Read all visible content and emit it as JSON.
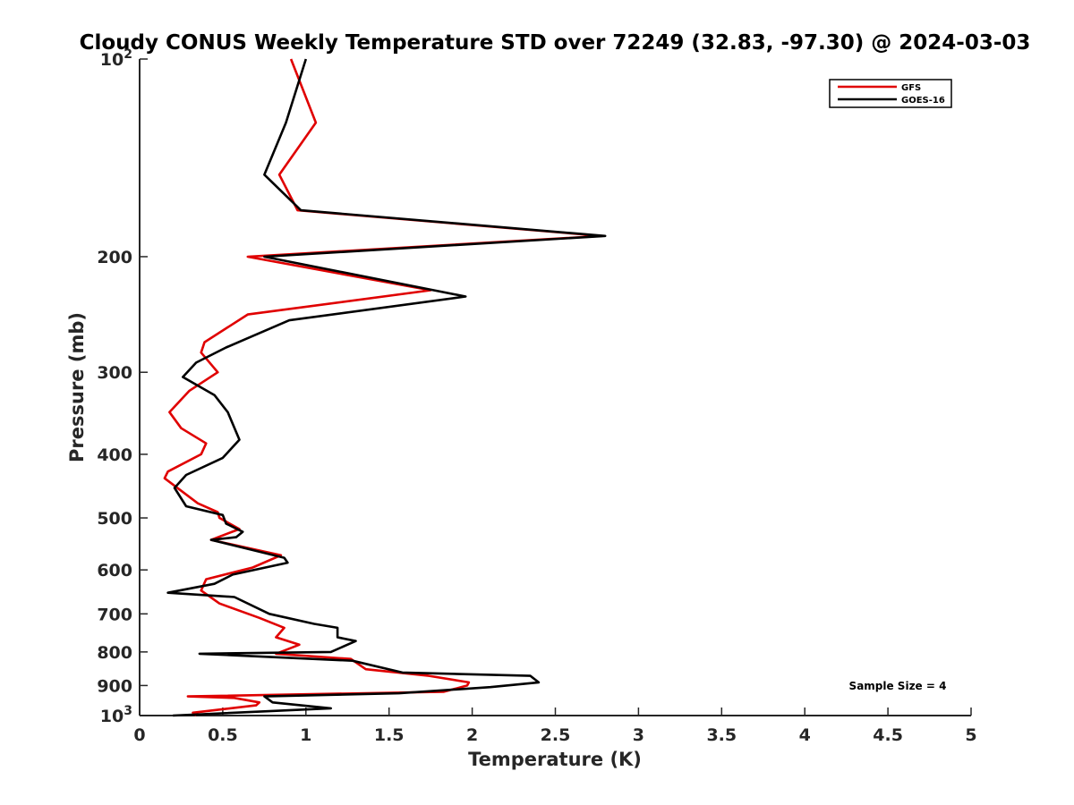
{
  "chart_data": {
    "type": "line",
    "title": "Cloudy CONUS Weekly Temperature STD over 72249 (32.83, -97.30) @ 2024-03-03",
    "xlabel": "Temperature (K)",
    "ylabel": "Pressure (mb)",
    "xlim": [
      0,
      5
    ],
    "ylim": [
      100,
      1000
    ],
    "yscale": "log",
    "y_reversed": true,
    "grid": false,
    "legend_location": "top-right",
    "x_ticks": [
      "0",
      "0.5",
      "1",
      "1.5",
      "2",
      "2.5",
      "3",
      "3.5",
      "4",
      "4.5",
      "5"
    ],
    "y_ticks": [
      {
        "value": 100,
        "base": "10",
        "exp": "2"
      },
      {
        "value": 200,
        "label": "200"
      },
      {
        "value": 300,
        "label": "300"
      },
      {
        "value": 400,
        "label": "400"
      },
      {
        "value": 500,
        "label": "500"
      },
      {
        "value": 600,
        "label": "600"
      },
      {
        "value": 700,
        "label": "700"
      },
      {
        "value": 800,
        "label": "800"
      },
      {
        "value": 900,
        "label": "900"
      },
      {
        "value": 1000,
        "base": "10",
        "exp": "3"
      }
    ],
    "annotation": "Sample Size = 4",
    "series": [
      {
        "name": "GFS",
        "color": "#e00000",
        "points": [
          [
            0.91,
            100
          ],
          [
            1.06,
            125
          ],
          [
            0.84,
            150
          ],
          [
            0.95,
            170
          ],
          [
            2.78,
            186
          ],
          [
            0.65,
            200
          ],
          [
            1.75,
            225
          ],
          [
            0.65,
            245
          ],
          [
            0.39,
            270
          ],
          [
            0.37,
            280
          ],
          [
            0.47,
            300
          ],
          [
            0.3,
            320
          ],
          [
            0.18,
            345
          ],
          [
            0.25,
            365
          ],
          [
            0.4,
            385
          ],
          [
            0.37,
            400
          ],
          [
            0.17,
            425
          ],
          [
            0.15,
            435
          ],
          [
            0.35,
            475
          ],
          [
            0.47,
            490
          ],
          [
            0.48,
            500
          ],
          [
            0.6,
            520
          ],
          [
            0.43,
            540
          ],
          [
            0.85,
            570
          ],
          [
            0.68,
            595
          ],
          [
            0.4,
            620
          ],
          [
            0.37,
            645
          ],
          [
            0.48,
            675
          ],
          [
            0.72,
            710
          ],
          [
            0.87,
            735
          ],
          [
            0.82,
            760
          ],
          [
            0.96,
            780
          ],
          [
            0.82,
            805
          ],
          [
            1.27,
            820
          ],
          [
            1.36,
            850
          ],
          [
            1.74,
            870
          ],
          [
            1.98,
            890
          ],
          [
            1.97,
            900
          ],
          [
            1.83,
            920
          ],
          [
            0.29,
            935
          ],
          [
            0.57,
            940
          ],
          [
            0.72,
            955
          ],
          [
            0.7,
            965
          ],
          [
            0.32,
            990
          ],
          [
            0.34,
            1000
          ]
        ]
      },
      {
        "name": "GOES-16",
        "color": "#000000",
        "points": [
          [
            1.0,
            100
          ],
          [
            0.88,
            125
          ],
          [
            0.75,
            150
          ],
          [
            0.97,
            170
          ],
          [
            2.8,
            186
          ],
          [
            0.75,
            200
          ],
          [
            1.96,
            230
          ],
          [
            0.9,
            250
          ],
          [
            0.52,
            275
          ],
          [
            0.34,
            290
          ],
          [
            0.26,
            305
          ],
          [
            0.45,
            325
          ],
          [
            0.53,
            345
          ],
          [
            0.6,
            380
          ],
          [
            0.5,
            405
          ],
          [
            0.28,
            430
          ],
          [
            0.21,
            450
          ],
          [
            0.28,
            480
          ],
          [
            0.5,
            495
          ],
          [
            0.52,
            510
          ],
          [
            0.62,
            525
          ],
          [
            0.58,
            535
          ],
          [
            0.43,
            540
          ],
          [
            0.87,
            575
          ],
          [
            0.89,
            585
          ],
          [
            0.56,
            610
          ],
          [
            0.45,
            630
          ],
          [
            0.17,
            650
          ],
          [
            0.57,
            660
          ],
          [
            0.78,
            700
          ],
          [
            1.05,
            725
          ],
          [
            1.19,
            735
          ],
          [
            1.19,
            760
          ],
          [
            1.3,
            770
          ],
          [
            1.15,
            800
          ],
          [
            0.36,
            805
          ],
          [
            1.28,
            825
          ],
          [
            1.58,
            860
          ],
          [
            2.35,
            870
          ],
          [
            2.4,
            890
          ],
          [
            2.11,
            905
          ],
          [
            1.56,
            925
          ],
          [
            0.75,
            935
          ],
          [
            0.8,
            955
          ],
          [
            1.15,
            975
          ],
          [
            0.2,
            1000
          ]
        ]
      }
    ]
  }
}
